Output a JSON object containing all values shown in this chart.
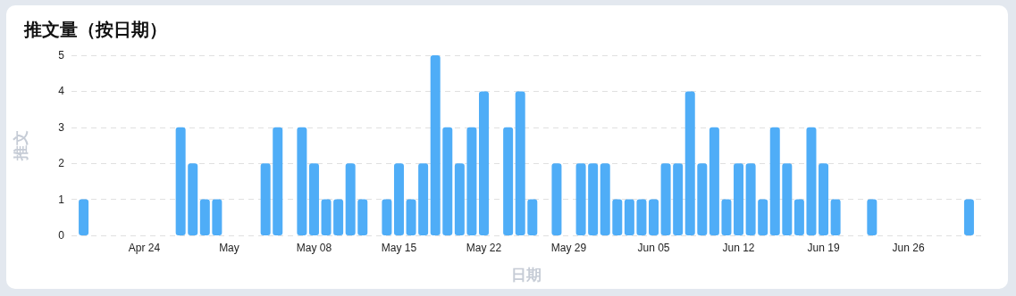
{
  "chart_data": {
    "type": "bar",
    "title": "推文量（按日期）",
    "xlabel": "日期",
    "ylabel": "推文",
    "x": [
      "--04-19",
      "--04-27",
      "--04-28",
      "--04-29",
      "--04-30",
      "--05-04",
      "--05-05",
      "--05-07",
      "--05-08",
      "--05-09",
      "--05-10",
      "--05-11",
      "--05-12",
      "--05-14",
      "--05-15",
      "--05-16",
      "--05-17",
      "--05-18",
      "--05-19",
      "--05-20",
      "--05-21",
      "--05-22",
      "--05-24",
      "--05-25",
      "--05-26",
      "--05-28",
      "--05-30",
      "--05-31",
      "--06-01",
      "--06-02",
      "--06-03",
      "--06-04",
      "--06-05",
      "--06-06",
      "--06-07",
      "--06-08",
      "--06-09",
      "--06-10",
      "--06-11",
      "--06-12",
      "--06-13",
      "--06-14",
      "--06-15",
      "--06-16",
      "--06-17",
      "--06-18",
      "--06-19",
      "--06-20",
      "--06-23",
      "--07-01"
    ],
    "values": [
      1,
      3,
      2,
      1,
      1,
      2,
      3,
      3,
      2,
      1,
      1,
      2,
      1,
      1,
      2,
      1,
      2,
      5,
      3,
      2,
      3,
      4,
      3,
      4,
      1,
      2,
      2,
      2,
      2,
      1,
      1,
      1,
      1,
      2,
      2,
      4,
      2,
      3,
      1,
      2,
      2,
      1,
      3,
      2,
      1,
      3,
      2,
      1,
      1,
      1
    ],
    "color": "#4fadf7",
    "xlim": [
      "--04-18",
      "--07-02"
    ],
    "xticks": [
      {
        "value": "--04-24",
        "label": "Apr 24"
      },
      {
        "value": "--05-01",
        "label": "May"
      },
      {
        "value": "--05-08",
        "label": "May 08"
      },
      {
        "value": "--05-15",
        "label": "May 15"
      },
      {
        "value": "--05-22",
        "label": "May 22"
      },
      {
        "value": "--05-29",
        "label": "May 29"
      },
      {
        "value": "--06-05",
        "label": "Jun 05"
      },
      {
        "value": "--06-12",
        "label": "Jun 12"
      },
      {
        "value": "--06-19",
        "label": "Jun 19"
      },
      {
        "value": "--06-26",
        "label": "Jun 26"
      }
    ],
    "ylim": [
      0,
      5
    ],
    "yticks": [
      0,
      1,
      2,
      3,
      4,
      5
    ],
    "grid": "y"
  }
}
